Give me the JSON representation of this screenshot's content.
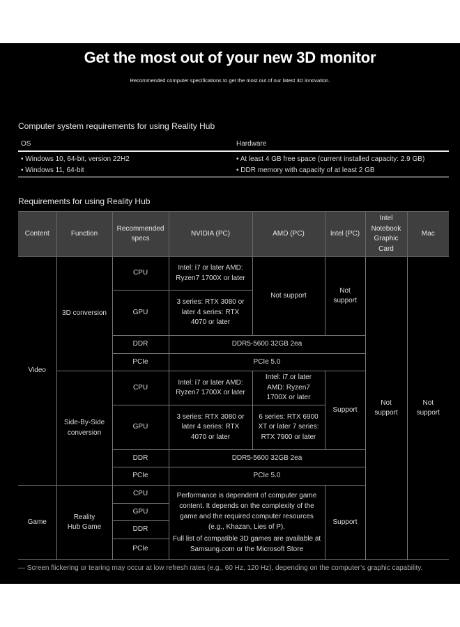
{
  "header": {
    "title": "Get the most out of your new 3D monitor",
    "subtitle": "Recommended computer specifications to get the most out of our latest 3D innovation."
  },
  "system": {
    "heading": "Computer system requirements for using Reality Hub",
    "os_label": "OS",
    "hardware_label": "Hardware",
    "os": [
      "• Windows 10, 64-bit, version 22H2",
      "• Windows 11, 64-bit"
    ],
    "hardware": [
      "• At least 4 GB free space (current installed capacity: 2.9 GB)",
      "• DDR memory with capacity of at least 2 GB"
    ]
  },
  "requirements": {
    "heading": "Requirements for using Reality Hub",
    "columns": [
      "Content",
      "Function",
      "Recommended specs",
      "NVIDIA (PC)",
      "AMD (PC)",
      "Intel (PC)",
      "Intel Notebook Graphic Card",
      "Mac"
    ],
    "video": "Video",
    "conv3d": {
      "function": "3D conversion",
      "cpu": "CPU",
      "gpu": "GPU",
      "ddr": "DDR",
      "pcie": "PCIe",
      "nvidia_cpu": "Intel: i7 or later AMD: Ryzen7 1700X or later",
      "nvidia_gpu": "3 series: RTX 3080 or later 4 series: RTX 4070 or later",
      "amd": "Not support",
      "intel": "Not support",
      "ddr_value": "DDR5-5600 32GB 2ea",
      "pcie_value": "PCIe 5.0"
    },
    "sbs": {
      "function": "Side-By-Side conversion",
      "cpu": "CPU",
      "gpu": "GPU",
      "ddr": "DDR",
      "pcie": "PCIe",
      "nvidia_cpu": "Intel: i7 or later AMD: Ryzen7 1700X or later",
      "amd_cpu": "Intel: i7 or later AMD: Ryzen7 1700X or later",
      "nvidia_gpu": "3 series: RTX 3080 or later 4 series: RTX 4070 or later",
      "amd_gpu": "6 series: RTX 6900 XT or later 7 series: RTX 7900 or later",
      "intel": "Support",
      "ddr_value": "DDR5-5600 32GB 2ea",
      "pcie_value": "PCIe 5.0"
    },
    "game": {
      "content": "Game",
      "function": "Reality Hub Game",
      "cpu": "CPU",
      "gpu": "GPU",
      "ddr": "DDR",
      "pcie": "PCIe",
      "performance": "Performance is dependent of computer game content. It depends on the complexity of the game and the required computer resources (e.g., Khazan, Lies of P).",
      "list": "Full list of compatible 3D games are available at Samsung.com or the Microsoft Store",
      "intel": "Support"
    },
    "notebook": "Not support",
    "mac": "Not support"
  },
  "footnote": "— Screen flickering or tearing may occur at low refresh rates (e.g., 60 Hz, 120 Hz), depending on the computer’s graphic capability."
}
